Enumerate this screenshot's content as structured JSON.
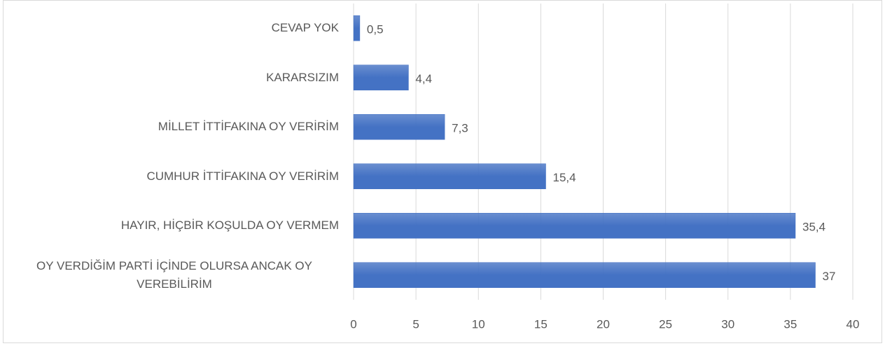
{
  "chart_data": {
    "type": "bar",
    "orientation": "horizontal",
    "categories": [
      "CEVAP YOK",
      "KARARSIZIM",
      "MİLLET İTTİFAKINA OY VERİRİM",
      "CUMHUR İTTİFAKINA OY VERİRİM",
      "HAYIR, HİÇBİR KOŞULDA OY VERMEM",
      "OY VERDİĞİM PARTİ İÇİNDE OLURSA ANCAK OY VEREBİLİRİM"
    ],
    "values": [
      0.5,
      4.4,
      7.3,
      15.4,
      35.4,
      37
    ],
    "value_labels": [
      "0,5",
      "4,4",
      "7,3",
      "15,4",
      "35,4",
      "37"
    ],
    "color": "#4472c4",
    "xlim": [
      0,
      40
    ],
    "xticks": [
      0,
      5,
      10,
      15,
      20,
      25,
      30,
      35,
      40
    ],
    "grid": true
  }
}
